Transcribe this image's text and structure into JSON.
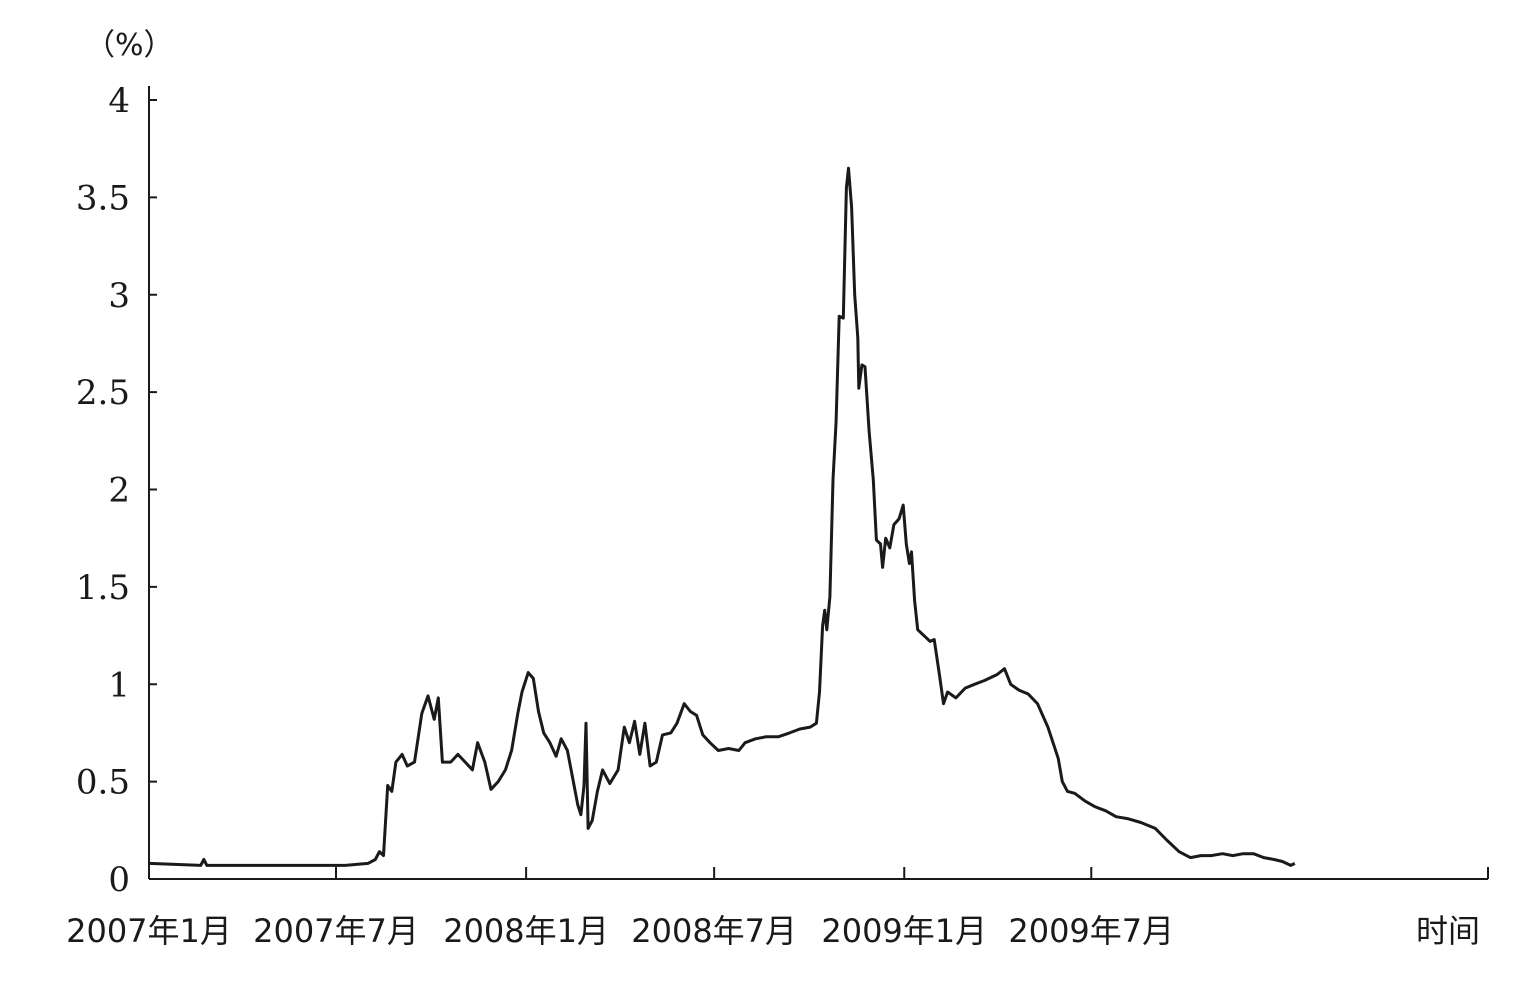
{
  "chart_data": {
    "type": "line",
    "title": "",
    "ylabel": "（%）",
    "xlabel": "时间",
    "ylim": [
      0,
      4
    ],
    "yticks": [
      0,
      0.5,
      1,
      1.5,
      2,
      2.5,
      3,
      3.5,
      4
    ],
    "ytick_labels": [
      "0",
      "0.5",
      "1",
      "1.5",
      "2",
      "2.5",
      "3",
      "3.5",
      "4"
    ],
    "xlim": [
      "2007-01-01",
      "2010-07-20"
    ],
    "xticks": [
      "2007-01-01",
      "2007-07-01",
      "2008-01-01",
      "2008-07-01",
      "2009-01-01",
      "2009-07-01"
    ],
    "xtick_labels": [
      "2007年1月",
      "2007年7月",
      "2008年1月",
      "2008年7月",
      "2009年1月",
      "2009年7月"
    ],
    "grid": false,
    "series": [
      {
        "points": [
          [
            "2007-01-01",
            0.08
          ],
          [
            "2007-02-20",
            0.07
          ],
          [
            "2007-02-23",
            0.1
          ],
          [
            "2007-02-26",
            0.07
          ],
          [
            "2007-04-10",
            0.07
          ],
          [
            "2007-05-25",
            0.07
          ],
          [
            "2007-06-25",
            0.07
          ],
          [
            "2007-07-10",
            0.07
          ],
          [
            "2007-08-01",
            0.08
          ],
          [
            "2007-08-08",
            0.1
          ],
          [
            "2007-08-12",
            0.14
          ],
          [
            "2007-08-16",
            0.12
          ],
          [
            "2007-08-20",
            0.48
          ],
          [
            "2007-08-24",
            0.45
          ],
          [
            "2007-08-28",
            0.6
          ],
          [
            "2007-09-03",
            0.64
          ],
          [
            "2007-09-08",
            0.58
          ],
          [
            "2007-09-15",
            0.6
          ],
          [
            "2007-09-22",
            0.85
          ],
          [
            "2007-09-28",
            0.94
          ],
          [
            "2007-10-04",
            0.82
          ],
          [
            "2007-10-08",
            0.93
          ],
          [
            "2007-10-12",
            0.6
          ],
          [
            "2007-10-20",
            0.6
          ],
          [
            "2007-10-27",
            0.64
          ],
          [
            "2007-11-03",
            0.6
          ],
          [
            "2007-11-10",
            0.56
          ],
          [
            "2007-11-15",
            0.7
          ],
          [
            "2007-11-22",
            0.6
          ],
          [
            "2007-11-28",
            0.46
          ],
          [
            "2007-12-05",
            0.5
          ],
          [
            "2007-12-12",
            0.56
          ],
          [
            "2007-12-18",
            0.66
          ],
          [
            "2007-12-24",
            0.85
          ],
          [
            "2007-12-28",
            0.96
          ],
          [
            "2008-01-03",
            1.06
          ],
          [
            "2008-01-08",
            1.03
          ],
          [
            "2008-01-13",
            0.86
          ],
          [
            "2008-01-18",
            0.75
          ],
          [
            "2008-01-24",
            0.7
          ],
          [
            "2008-01-30",
            0.63
          ],
          [
            "2008-02-04",
            0.72
          ],
          [
            "2008-02-10",
            0.66
          ],
          [
            "2008-02-15",
            0.52
          ],
          [
            "2008-02-20",
            0.38
          ],
          [
            "2008-02-23",
            0.33
          ],
          [
            "2008-02-26",
            0.48
          ],
          [
            "2008-02-28",
            0.8
          ],
          [
            "2008-03-01",
            0.26
          ],
          [
            "2008-03-05",
            0.3
          ],
          [
            "2008-03-10",
            0.45
          ],
          [
            "2008-03-15",
            0.56
          ],
          [
            "2008-03-22",
            0.49
          ],
          [
            "2008-03-30",
            0.56
          ],
          [
            "2008-04-05",
            0.78
          ],
          [
            "2008-04-10",
            0.7
          ],
          [
            "2008-04-15",
            0.81
          ],
          [
            "2008-04-20",
            0.64
          ],
          [
            "2008-04-25",
            0.8
          ],
          [
            "2008-04-30",
            0.58
          ],
          [
            "2008-05-06",
            0.6
          ],
          [
            "2008-05-12",
            0.74
          ],
          [
            "2008-05-20",
            0.75
          ],
          [
            "2008-05-26",
            0.8
          ],
          [
            "2008-06-02",
            0.9
          ],
          [
            "2008-06-08",
            0.86
          ],
          [
            "2008-06-14",
            0.84
          ],
          [
            "2008-06-20",
            0.74
          ],
          [
            "2008-06-27",
            0.7
          ],
          [
            "2008-07-05",
            0.66
          ],
          [
            "2008-07-15",
            0.67
          ],
          [
            "2008-07-25",
            0.66
          ],
          [
            "2008-07-31",
            0.7
          ],
          [
            "2008-08-10",
            0.72
          ],
          [
            "2008-08-20",
            0.73
          ],
          [
            "2008-09-01",
            0.73
          ],
          [
            "2008-09-12",
            0.75
          ],
          [
            "2008-09-22",
            0.77
          ],
          [
            "2008-10-02",
            0.78
          ],
          [
            "2008-10-08",
            0.8
          ],
          [
            "2008-10-11",
            0.96
          ],
          [
            "2008-10-14",
            1.3
          ],
          [
            "2008-10-16",
            1.38
          ],
          [
            "2008-10-18",
            1.28
          ],
          [
            "2008-10-21",
            1.45
          ],
          [
            "2008-10-24",
            2.05
          ],
          [
            "2008-10-27",
            2.35
          ],
          [
            "2008-10-30",
            2.89
          ],
          [
            "2008-11-03",
            2.88
          ],
          [
            "2008-11-06",
            3.55
          ],
          [
            "2008-11-08",
            3.65
          ],
          [
            "2008-11-11",
            3.45
          ],
          [
            "2008-11-14",
            3.0
          ],
          [
            "2008-11-17",
            2.78
          ],
          [
            "2008-11-18",
            2.52
          ],
          [
            "2008-11-21",
            2.64
          ],
          [
            "2008-11-24",
            2.63
          ],
          [
            "2008-11-28",
            2.3
          ],
          [
            "2008-12-02",
            2.05
          ],
          [
            "2008-12-05",
            1.74
          ],
          [
            "2008-12-09",
            1.72
          ],
          [
            "2008-12-11",
            1.6
          ],
          [
            "2008-12-14",
            1.75
          ],
          [
            "2008-12-18",
            1.7
          ],
          [
            "2008-12-22",
            1.82
          ],
          [
            "2008-12-27",
            1.85
          ],
          [
            "2008-12-31",
            1.92
          ],
          [
            "2009-01-03",
            1.72
          ],
          [
            "2009-01-06",
            1.62
          ],
          [
            "2009-01-08",
            1.68
          ],
          [
            "2009-01-11",
            1.43
          ],
          [
            "2009-01-14",
            1.28
          ],
          [
            "2009-01-20",
            1.25
          ],
          [
            "2009-01-26",
            1.22
          ],
          [
            "2009-01-30",
            1.23
          ],
          [
            "2009-02-04",
            1.05
          ],
          [
            "2009-02-08",
            0.9
          ],
          [
            "2009-02-12",
            0.96
          ],
          [
            "2009-02-20",
            0.93
          ],
          [
            "2009-03-01",
            0.98
          ],
          [
            "2009-03-10",
            1.0
          ],
          [
            "2009-03-20",
            1.02
          ],
          [
            "2009-04-01",
            1.05
          ],
          [
            "2009-04-08",
            1.08
          ],
          [
            "2009-04-14",
            1.0
          ],
          [
            "2009-04-22",
            0.97
          ],
          [
            "2009-05-01",
            0.95
          ],
          [
            "2009-05-10",
            0.9
          ],
          [
            "2009-05-20",
            0.78
          ],
          [
            "2009-05-30",
            0.62
          ],
          [
            "2009-06-03",
            0.5
          ],
          [
            "2009-06-08",
            0.45
          ],
          [
            "2009-06-15",
            0.44
          ],
          [
            "2009-06-25",
            0.4
          ],
          [
            "2009-07-05",
            0.37
          ],
          [
            "2009-07-15",
            0.35
          ],
          [
            "2009-07-25",
            0.32
          ],
          [
            "2009-08-05",
            0.31
          ],
          [
            "2009-08-18",
            0.29
          ],
          [
            "2009-09-01",
            0.26
          ],
          [
            "2009-09-12",
            0.2
          ],
          [
            "2009-09-24",
            0.14
          ],
          [
            "2009-10-05",
            0.11
          ],
          [
            "2009-10-15",
            0.12
          ],
          [
            "2009-10-25",
            0.12
          ],
          [
            "2009-11-05",
            0.13
          ],
          [
            "2009-11-15",
            0.12
          ],
          [
            "2009-11-25",
            0.13
          ],
          [
            "2009-12-05",
            0.13
          ],
          [
            "2009-12-15",
            0.11
          ],
          [
            "2009-12-25",
            0.1
          ],
          [
            "2010-01-02",
            0.09
          ],
          [
            "2010-01-10",
            0.07
          ],
          [
            "2010-01-14",
            0.08
          ]
        ]
      }
    ]
  }
}
